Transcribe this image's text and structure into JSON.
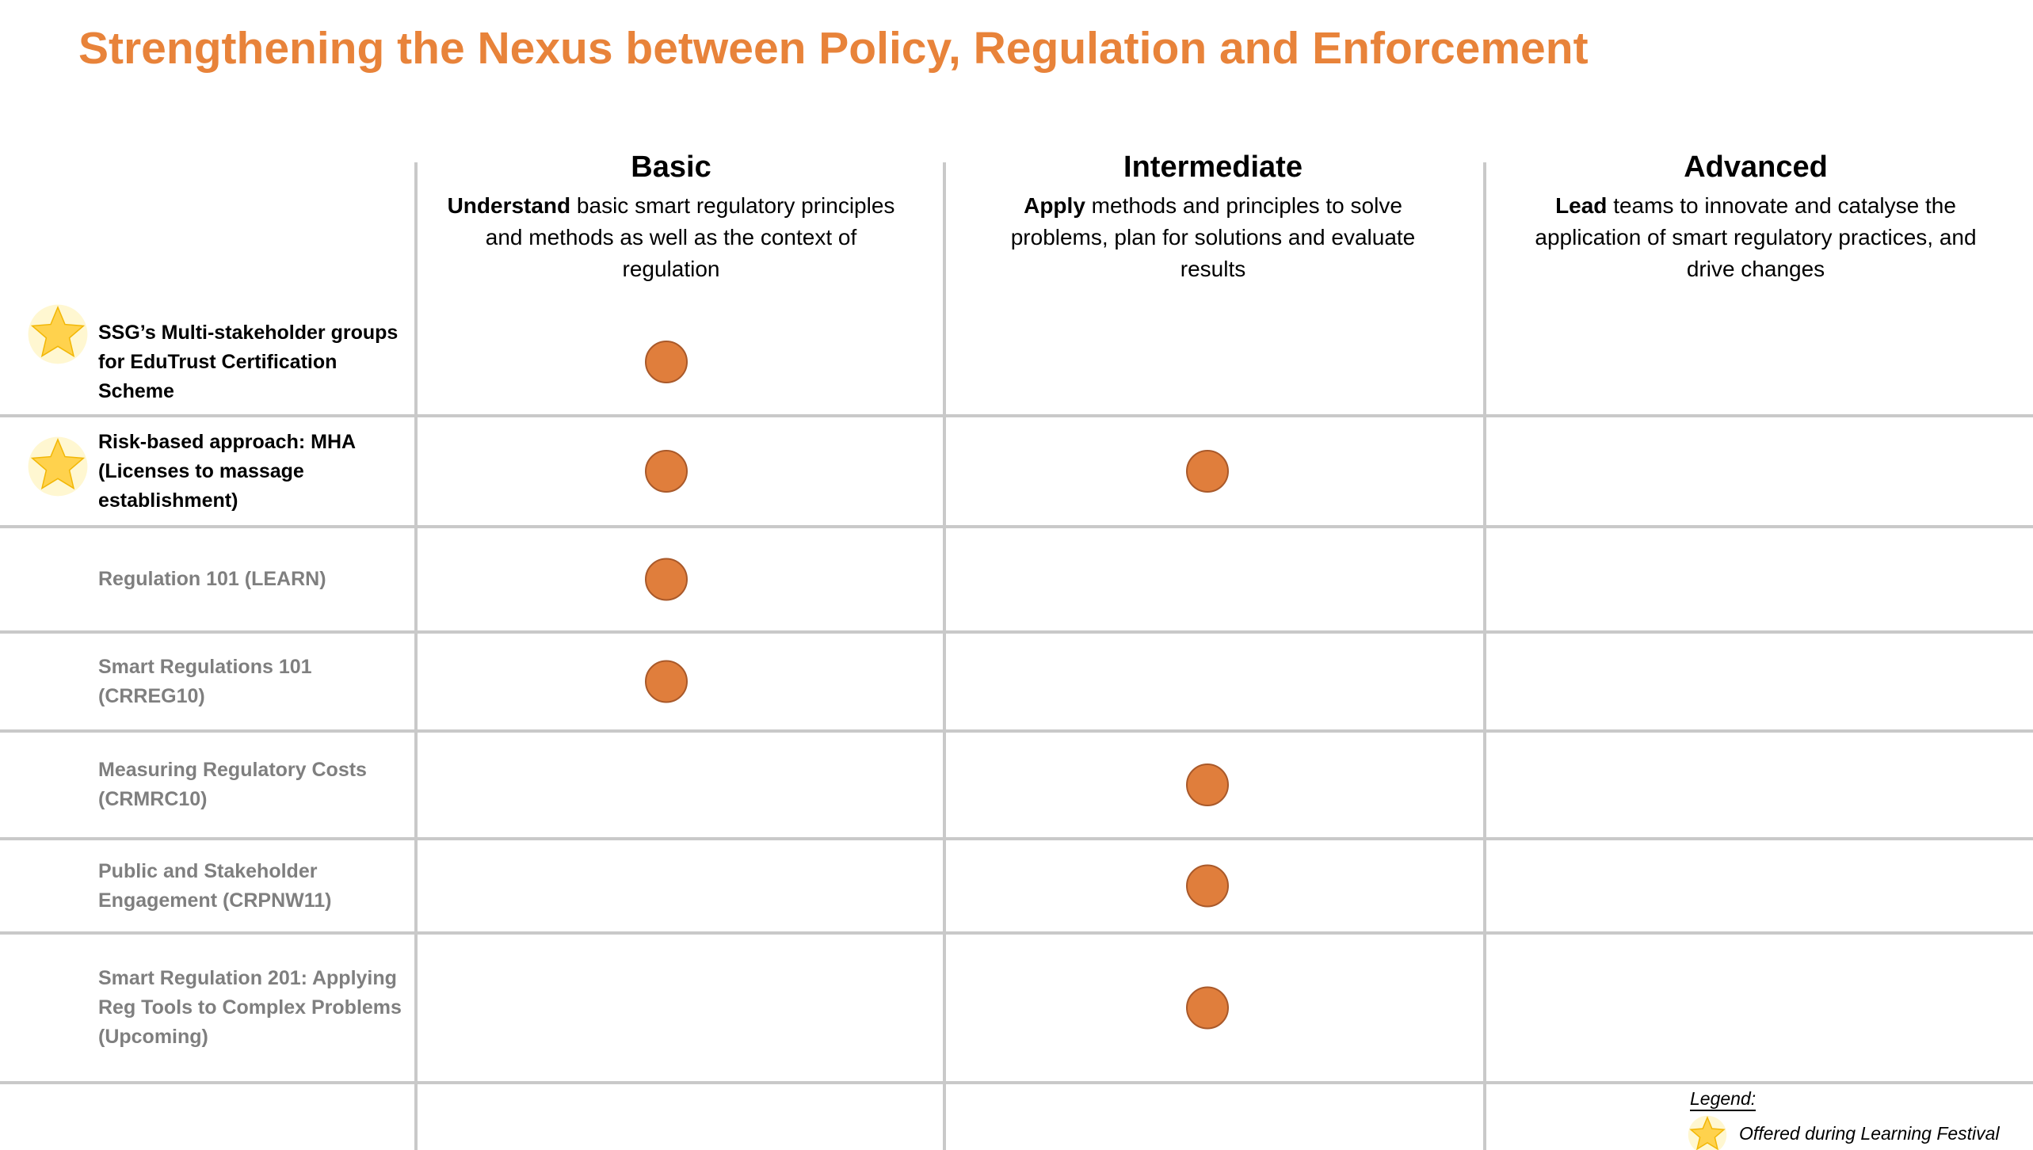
{
  "title": "Strengthening the Nexus between Policy, Regulation and Enforcement",
  "columns": [
    {
      "name": "Basic",
      "lead": "Understand",
      "text": "basic smart regulatory principles and methods as well as the context of regulation"
    },
    {
      "name": "Intermediate",
      "lead": "Apply",
      "text": "methods and principles to solve problems, plan for solutions and evaluate results"
    },
    {
      "name": "Advanced",
      "lead": "Lead",
      "text": "teams to innovate and catalyse the application of smart regulatory practices, and drive changes"
    }
  ],
  "rows": [
    {
      "label": "SSG’s Multi-stakeholder groups for EduTrust Certification Scheme",
      "star": true,
      "levels": [
        true,
        false,
        false
      ]
    },
    {
      "label": "Risk-based approach: MHA (Licenses to massage establishment)",
      "star": true,
      "levels": [
        true,
        true,
        false
      ]
    },
    {
      "label": "Regulation 101 (LEARN)",
      "star": false,
      "levels": [
        true,
        false,
        false
      ]
    },
    {
      "label": "Smart Regulations 101 (CRREG10)",
      "star": false,
      "levels": [
        true,
        false,
        false
      ]
    },
    {
      "label": "Measuring Regulatory Costs (CRMRC10)",
      "star": false,
      "levels": [
        false,
        true,
        false
      ]
    },
    {
      "label": "Public and Stakeholder Engagement (CRPNW11)",
      "star": false,
      "levels": [
        false,
        true,
        false
      ]
    },
    {
      "label": "Smart Regulation 201: Applying Reg Tools to Complex Problems (Upcoming)",
      "star": false,
      "levels": [
        false,
        true,
        false
      ]
    }
  ],
  "legend": {
    "title": "Legend:",
    "star": "Offered during Learning Festival"
  }
}
